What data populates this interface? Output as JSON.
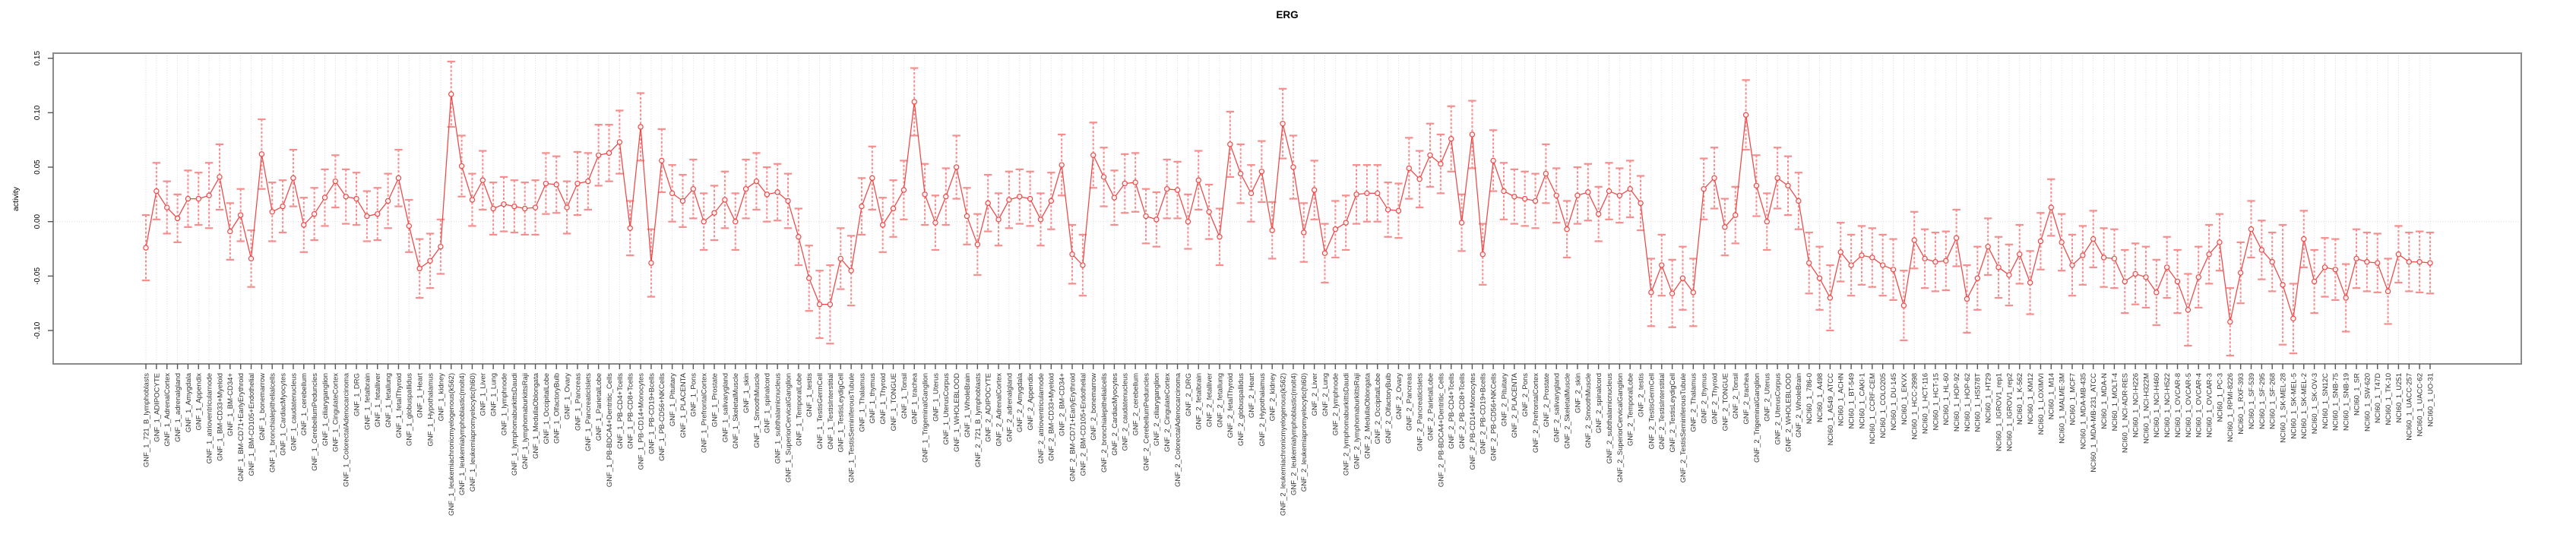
{
  "chart_data": {
    "type": "line",
    "title": "ERG",
    "ylabel": "activity",
    "xlabel": "",
    "ylim": [
      -0.13,
      0.158
    ],
    "grid": "vertical-dotted-per-category, dotted zero line",
    "legend_position": "none",
    "point_style": "open-circle with error bars",
    "ytick_labels": [
      "0.15",
      "0.10",
      "0.05",
      "0.00",
      "-0.05",
      "-0.10"
    ],
    "ytick_values": [
      0.15,
      0.1,
      0.05,
      0.0,
      -0.05,
      -0.1
    ],
    "categories": [
      "GNF_1_721_B_lymphoblasts",
      "GNF_1_ADIPOCYTE",
      "GNF_1_AdrenalCortex",
      "GNF_1_adrenalgland",
      "GNF_1_Amygdala",
      "GNF_1_Appendix",
      "GNF_1_atrioventricularnode",
      "GNF_1_BM-CD33+Myeloid",
      "GNF_1_BM-CD34+",
      "GNF_1_BM-CD71+EarlyErythroid",
      "GNF_1_BM-CD105+Endothelial",
      "GNF_1_bonemarrow",
      "GNF_1_bronchialepithelialcells",
      "GNF_1_CardiacMyocytes",
      "GNF_1_caudatenucleus",
      "GNF_1_cerebellum",
      "GNF_1_CerebellumPeduncles",
      "GNF_1_ciliaryganglion",
      "GNF_1_CingulateCortex",
      "GNF_1_ColorectalAdenocarcinoma",
      "GNF_1_DRG",
      "GNF_1_fetalbrain",
      "GNF_1_fetalliver",
      "GNF_1_fetallung",
      "GNF_1_fetalThyroid",
      "GNF_1_globuspallidus",
      "GNF_1_Heart",
      "GNF_1_Hypothalamus",
      "GNF_1_kidney",
      "GNF_1_leukemiachronicmyelogenous(k562)",
      "GNF_1_leukemialymphoblastic(molt4)",
      "GNF_1_leukemiapromyelocytic(hl60)",
      "GNF_1_Liver",
      "GNF_1_Lung",
      "GNF_1_lymphnode",
      "GNF_1_lymphomaburkittsDaudi",
      "GNF_1_lymphomaburkittsRaji",
      "GNF_1_MedullaOblongata",
      "GNF_1_OccipitalLobe",
      "GNF_1_OlfactoryBulb",
      "GNF_1_Ovary",
      "GNF_1_Pancreas",
      "GNF_1_PancreaticIslets",
      "GNF_1_ParietalLobe",
      "GNF_1_PB-BDCA4+Dentritic_Cells",
      "GNF_1_PB-CD4+Tcells",
      "GNF_1_PB-CD8+Tcells",
      "GNF_1_PB-CD14+Monocytes",
      "GNF_1_PB-CD19+Bcells",
      "GNF_1_PB-CD56+NKCells",
      "GNF_1_Pituitary",
      "GNF_1_PLACENTA",
      "GNF_1_Pons",
      "GNF_1_PrefrontalCortex",
      "GNF_1_Prostate",
      "GNF_1_salivarygland",
      "GNF_1_SkeletalMuscle",
      "GNF_1_skin",
      "GNF_1_SmoothMuscle",
      "GNF_1_spinalcord",
      "GNF_1_subthalamicnucleus",
      "GNF_1_SuperiorCervicalGanglion",
      "GNF_1_TemporalLobe",
      "GNF_1_testis",
      "GNF_1_TestisGermCell",
      "GNF_1_TestisInterstitial",
      "GNF_1_TestisLeydigCell",
      "GNF_1_TestisSeminiferousTubule",
      "GNF_1_Thalamus",
      "GNF_1_thymus",
      "GNF_1_Thyroid",
      "GNF_1_TONGUE",
      "GNF_1_Tonsil",
      "GNF_1_trachea",
      "GNF_1_TrigeminalGanglion",
      "GNF_1_Uterus",
      "GNF_1_UterusCorpus",
      "GNF_1_WHOLEBLOOD",
      "GNF_1_WholeBrain",
      "GNF_2_721_B_lymphoblasts",
      "GNF_2_ADIPOCYTE",
      "GNF_2_AdrenalCortex",
      "GNF_2_adrenalgland",
      "GNF_2_Amygdala",
      "GNF_2_Appendix",
      "GNF_2_atrioventricularnode",
      "GNF_2_BM-CD33+Myeloid",
      "GNF_2_BM-CD34+",
      "GNF_2_BM-CD71+EarlyErythroid",
      "GNF_2_BM-CD105+Endothelial",
      "GNF_2_bonemarrow",
      "GNF_2_bronchialepithelialcells",
      "GNF_2_CardiacMyocytes",
      "GNF_2_caudatenucleus",
      "GNF_2_cerebellum",
      "GNF_2_CerebellumPeduncles",
      "GNF_2_ciliaryganglion",
      "GNF_2_CingulateCortex",
      "GNF_2_ColorectalAdenocarcinoma",
      "GNF_2_DRG",
      "GNF_2_fetalbrain",
      "GNF_2_fetalliver",
      "GNF_2_fetallung",
      "GNF_2_fetalThyroid",
      "GNF_2_globuspallidus",
      "GNF_2_Heart",
      "GNF_2_Hypothalamus",
      "GNF_2_kidney",
      "GNF_2_leukemiachronicmyelogenous(k562)",
      "GNF_2_leukemialymphoblastic(molt4)",
      "GNF_2_leukemiapromyelocytic(hl60)",
      "GNF_2_Liver",
      "GNF_2_Lung",
      "GNF_2_lymphnode",
      "GNF_2_lymphomaburkittsDaudi",
      "GNF_2_lymphomaburkittsRaji",
      "GNF_2_MedullaOblongata",
      "GNF_2_OccipitalLobe",
      "GNF_2_OlfactoryBulb",
      "GNF_2_Ovary",
      "GNF_2_Pancreas",
      "GNF_2_PancreaticIslets",
      "GNF_2_ParietalLobe",
      "GNF_2_PB-BDCA4+Dentritic_Cells",
      "GNF_2_PB-CD4+Tcells",
      "GNF_2_PB-CD8+Tcells",
      "GNF_2_PB-CD14+Monocytes",
      "GNF_2_PB-CD19+Bcells",
      "GNF_2_PB-CD56+NKCells",
      "GNF_2_Pituitary",
      "GNF_2_PLACENTA",
      "GNF_2_Pons",
      "GNF_2_PrefrontalCortex",
      "GNF_2_Prostate",
      "GNF_2_salivarygland",
      "GNF_2_SkeletalMuscle",
      "GNF_2_skin",
      "GNF_2_SmoothMuscle",
      "GNF_2_spinalcord",
      "GNF_2_subthalamicnucleus",
      "GNF_2_SuperiorCervicalGanglion",
      "GNF_2_TemporalLobe",
      "GNF_2_testis",
      "GNF_2_TestisGermCell",
      "GNF_2_TestisInterstitial",
      "GNF_2_TestisLeydigCell",
      "GNF_2_TestisSeminiferousTubule",
      "GNF_2_Thalamus",
      "GNF_2_thymus",
      "GNF_2_Thyroid",
      "GNF_2_TONGUE",
      "GNF_2_Tonsil",
      "GNF_2_trachea",
      "GNF_2_TrigeminalGanglion",
      "GNF_2_Uterus",
      "GNF_2_UterusCorpus",
      "GNF_2_WHOLEBLOOD",
      "GNF_2_WholeBrain",
      "NCI60_1_786-0",
      "NCI60_1_A498",
      "NCI60_1_A549_ATCC",
      "NCI60_1_ACHN",
      "NCI60_1_BT-549",
      "NCI60_1_CAKI-1",
      "NCI60_1_CCRF-CEM",
      "NCI60_1_COLO205",
      "NCI60_1_DU-145",
      "NCI60_1_EKVX",
      "NCI60_1_HCC-2998",
      "NCI60_1_HCT-116",
      "NCI60_1_HCT-15",
      "NCI60_1_HL-60",
      "NCI60_1_HOP-92",
      "NCI60_1_HOP-62",
      "NCI60_1_HS578T",
      "NCI60_1_HT29",
      "NCI60_1_IGROV1_rep1",
      "NCI60_1_IGROV1_rep2",
      "NCI60_1_K-562",
      "NCI60_1_KM12",
      "NCI60_1_LOXIMVI",
      "NCI60_1_M14",
      "NCI60_1_MALME-3M",
      "NCI60_1_MCF7",
      "NCI60_1_MDA-MB-435",
      "NCI60_1_MDA-MB-231_ATCC",
      "NCI60_1_MDA-N",
      "NCI60_1_MOLT-4",
      "NCI60_1_NCI-ADR-RES",
      "NCI60_1_NCI-H226",
      "NCI60_1_NCI-H322M",
      "NCI60_1_NCI-H460",
      "NCI60_1_NCI-H522",
      "NCI60_1_OVCAR-8",
      "NCI60_1_OVCAR-5",
      "NCI60_1_OVCAR-4",
      "NCI60_1_OVCAR-3",
      "NCI60_1_PC-3",
      "NCI60_1_RPMI-8226",
      "NCI60_1_RXF-393",
      "NCI60_1_SF-539",
      "NCI60_1_SF-295",
      "NCI60_1_SF-268",
      "NCI60_1_SK-MEL-28",
      "NCI60_1_SK-MEL-5",
      "NCI60_1_SK-MEL-2",
      "NCI60_1_SK-OV-3",
      "NCI60_1_SN12C",
      "NCI60_1_SNB-75",
      "NCI60_1_SNB-19",
      "NCI60_1_SR",
      "NCI60_1_SW-620",
      "NCI60_1_T47D",
      "NCI60_1_TK-10",
      "NCI60_1_U251",
      "NCI60_1_UACC-257",
      "NCI60_1_UACC-62",
      "NCI60_1_UO-31"
    ],
    "values": [
      -0.024,
      0.028,
      0.013,
      0.003,
      0.021,
      0.021,
      0.024,
      0.041,
      -0.009,
      0.006,
      -0.034,
      0.062,
      0.009,
      0.014,
      0.04,
      -0.003,
      0.007,
      0.022,
      0.037,
      0.023,
      0.021,
      0.005,
      0.007,
      0.019,
      0.04,
      -0.004,
      -0.043,
      -0.036,
      -0.023,
      0.117,
      0.051,
      0.02,
      0.038,
      0.012,
      0.016,
      0.014,
      0.012,
      0.013,
      0.035,
      0.034,
      0.013,
      0.035,
      0.037,
      0.061,
      0.063,
      0.073,
      -0.006,
      0.087,
      -0.038,
      0.056,
      0.026,
      0.019,
      0.03,
      0.0,
      0.008,
      0.02,
      0.0,
      0.03,
      0.037,
      0.025,
      0.027,
      0.019,
      -0.014,
      -0.052,
      -0.076,
      -0.076,
      -0.034,
      -0.045,
      0.014,
      0.04,
      -0.003,
      0.012,
      0.029,
      0.11,
      0.025,
      -0.001,
      0.023,
      0.05,
      0.005,
      -0.021,
      0.017,
      0.002,
      0.02,
      0.023,
      0.021,
      0.002,
      0.019,
      0.052,
      -0.03,
      -0.04,
      0.061,
      0.041,
      0.022,
      0.035,
      0.036,
      0.005,
      0.002,
      0.03,
      0.029,
      0.0,
      0.038,
      0.009,
      -0.014,
      0.071,
      0.044,
      0.026,
      0.046,
      -0.008,
      0.09,
      0.05,
      -0.01,
      0.029,
      -0.029,
      -0.007,
      -0.001,
      0.025,
      0.026,
      0.026,
      0.011,
      0.01,
      0.049,
      0.039,
      0.061,
      0.053,
      0.076,
      -0.001,
      0.08,
      -0.03,
      0.056,
      0.028,
      0.023,
      0.021,
      0.019,
      0.044,
      0.024,
      -0.007,
      0.024,
      0.027,
      0.007,
      0.028,
      0.024,
      0.03,
      0.017,
      -0.065,
      -0.04,
      -0.066,
      -0.052,
      -0.065,
      0.03,
      0.04,
      -0.005,
      0.006,
      0.098,
      0.033,
      0.0,
      0.04,
      0.033,
      0.019,
      -0.038,
      -0.052,
      -0.07,
      -0.028,
      -0.04,
      -0.031,
      -0.033,
      -0.04,
      -0.044,
      -0.077,
      -0.017,
      -0.034,
      -0.037,
      -0.036,
      -0.015,
      -0.071,
      -0.052,
      -0.023,
      -0.042,
      -0.049,
      -0.03,
      -0.056,
      -0.018,
      0.013,
      -0.019,
      -0.04,
      -0.031,
      -0.016,
      -0.033,
      -0.034,
      -0.055,
      -0.048,
      -0.051,
      -0.065,
      -0.042,
      -0.055,
      -0.081,
      -0.051,
      -0.03,
      -0.019,
      -0.092,
      -0.047,
      -0.007,
      -0.026,
      -0.037,
      -0.058,
      -0.089,
      -0.016,
      -0.055,
      -0.042,
      -0.044,
      -0.07,
      -0.034,
      -0.037,
      -0.038,
      -0.064,
      -0.03,
      -0.037,
      -0.037,
      -0.038
    ],
    "errors": [
      0.03,
      0.026,
      0.024,
      0.022,
      0.026,
      0.024,
      0.03,
      0.03,
      0.026,
      0.024,
      0.026,
      0.032,
      0.027,
      0.024,
      0.026,
      0.025,
      0.024,
      0.026,
      0.024,
      0.025,
      0.024,
      0.023,
      0.024,
      0.025,
      0.026,
      0.024,
      0.027,
      0.025,
      0.025,
      0.03,
      0.028,
      0.024,
      0.027,
      0.024,
      0.025,
      0.024,
      0.024,
      0.025,
      0.028,
      0.026,
      0.024,
      0.029,
      0.026,
      0.028,
      0.026,
      0.029,
      0.025,
      0.031,
      0.031,
      0.029,
      0.026,
      0.024,
      0.027,
      0.026,
      0.025,
      0.026,
      0.026,
      0.027,
      0.026,
      0.025,
      0.026,
      0.025,
      0.026,
      0.03,
      0.031,
      0.036,
      0.028,
      0.032,
      0.026,
      0.029,
      0.025,
      0.026,
      0.027,
      0.031,
      0.028,
      0.025,
      0.026,
      0.029,
      0.026,
      0.028,
      0.026,
      0.024,
      0.026,
      0.025,
      0.025,
      0.024,
      0.026,
      0.028,
      0.027,
      0.028,
      0.03,
      0.027,
      0.025,
      0.027,
      0.027,
      0.025,
      0.025,
      0.027,
      0.026,
      0.025,
      0.027,
      0.025,
      0.026,
      0.03,
      0.027,
      0.026,
      0.028,
      0.026,
      0.032,
      0.029,
      0.027,
      0.027,
      0.027,
      0.026,
      0.025,
      0.027,
      0.026,
      0.026,
      0.025,
      0.025,
      0.028,
      0.026,
      0.029,
      0.027,
      0.03,
      0.026,
      0.031,
      0.028,
      0.028,
      0.026,
      0.025,
      0.025,
      0.025,
      0.027,
      0.025,
      0.026,
      0.026,
      0.026,
      0.025,
      0.026,
      0.025,
      0.026,
      0.025,
      0.031,
      0.028,
      0.031,
      0.029,
      0.031,
      0.028,
      0.028,
      0.026,
      0.026,
      0.032,
      0.028,
      0.026,
      0.028,
      0.027,
      0.026,
      0.028,
      0.029,
      0.03,
      0.027,
      0.028,
      0.027,
      0.027,
      0.028,
      0.028,
      0.032,
      0.026,
      0.027,
      0.027,
      0.027,
      0.026,
      0.031,
      0.029,
      0.026,
      0.028,
      0.028,
      0.027,
      0.029,
      0.026,
      0.026,
      0.026,
      0.028,
      0.027,
      0.026,
      0.027,
      0.027,
      0.029,
      0.028,
      0.028,
      0.03,
      0.028,
      0.029,
      0.033,
      0.028,
      0.027,
      0.026,
      0.031,
      0.028,
      0.026,
      0.027,
      0.027,
      0.055,
      0.032,
      0.026,
      0.029,
      0.027,
      0.028,
      0.031,
      0.027,
      0.027,
      0.027,
      0.03,
      0.026,
      0.027,
      0.028,
      0.028
    ],
    "colors": {
      "series": "#ee4747",
      "error_bar": "#f58f8f",
      "grid": "#d8d8d8",
      "border": "#8a8a8a",
      "tick_text": "#333333",
      "background": "#ffffff"
    }
  }
}
